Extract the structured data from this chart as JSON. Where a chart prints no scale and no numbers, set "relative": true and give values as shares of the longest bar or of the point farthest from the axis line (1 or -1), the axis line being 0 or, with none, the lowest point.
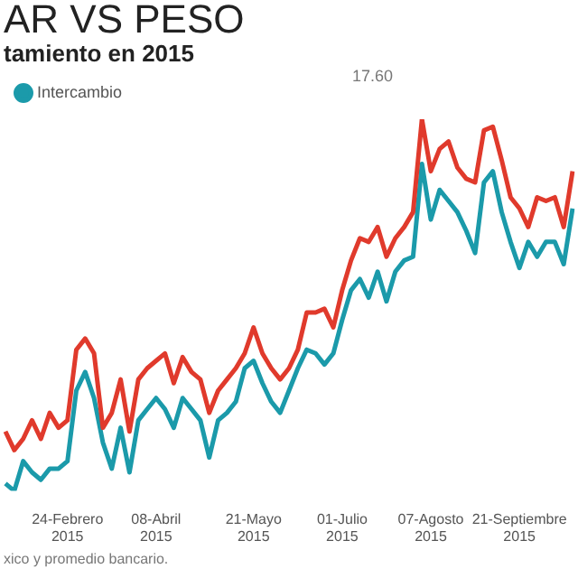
{
  "chart_data": {
    "type": "line",
    "title": "AR VS PESO",
    "subtitle": "tamiento en 2015",
    "relative": true,
    "legend": "top left",
    "marker": "none",
    "categories": [
      null,
      null,
      null,
      null,
      null,
      null,
      null,
      "24-Febrero 2015",
      null,
      null,
      null,
      null,
      null,
      null,
      null,
      null,
      null,
      "08-Abril 2015",
      null,
      null,
      null,
      null,
      null,
      null,
      null,
      null,
      null,
      null,
      "21-Mayo 2015",
      null,
      null,
      null,
      null,
      null,
      null,
      null,
      null,
      null,
      "01-Julio 2015",
      null,
      null,
      null,
      null,
      null,
      null,
      null,
      null,
      null,
      "07-Agosto 2015",
      null,
      null,
      null,
      null,
      null,
      null,
      null,
      null,
      null,
      "21-Septiembre 2015",
      null,
      null,
      null,
      null,
      null,
      null
    ],
    "series": [
      {
        "color": "#e03a2c",
        "values": [
          0.16,
          0.11,
          0.14,
          0.19,
          0.14,
          0.21,
          0.17,
          0.19,
          0.38,
          0.41,
          0.37,
          0.17,
          0.21,
          0.3,
          0.16,
          0.3,
          0.33,
          0.35,
          0.37,
          0.29,
          0.36,
          0.32,
          0.3,
          0.21,
          0.27,
          0.3,
          0.33,
          0.37,
          0.44,
          0.37,
          0.33,
          0.3,
          0.33,
          0.38,
          0.48,
          0.48,
          0.49,
          0.44,
          0.54,
          0.62,
          0.68,
          0.67,
          0.71,
          0.63,
          0.68,
          0.71,
          0.75,
          1,
          0.86,
          0.92,
          0.94,
          0.87,
          0.84,
          0.83,
          0.97,
          0.98,
          0.89,
          0.79,
          0.76,
          0.71,
          0.79,
          0.78,
          0.79,
          0.71,
          0.86
        ]
      },
      {
        "name": "Intercambio",
        "color": "#1b9aaa",
        "values": [
          0.02,
          0,
          0.08,
          0.05,
          0.03,
          0.06,
          0.06,
          0.08,
          0.27,
          0.32,
          0.25,
          0.13,
          0.06,
          0.17,
          0.05,
          0.19,
          0.22,
          0.25,
          0.22,
          0.17,
          0.25,
          0.22,
          0.19,
          0.09,
          0.19,
          0.21,
          0.24,
          0.33,
          0.35,
          0.29,
          0.24,
          0.21,
          0.27,
          0.33,
          0.38,
          0.37,
          0.34,
          0.37,
          0.46,
          0.54,
          0.57,
          0.52,
          0.59,
          0.51,
          0.59,
          0.62,
          0.63,
          0.88,
          0.73,
          0.81,
          0.78,
          0.75,
          0.7,
          0.64,
          0.83,
          0.86,
          0.75,
          0.67,
          0.6,
          0.67,
          0.63,
          0.67,
          0.67,
          0.61,
          0.76
        ]
      }
    ],
    "annotations": [
      "17.60",
      "xico y promedio bancario."
    ]
  }
}
